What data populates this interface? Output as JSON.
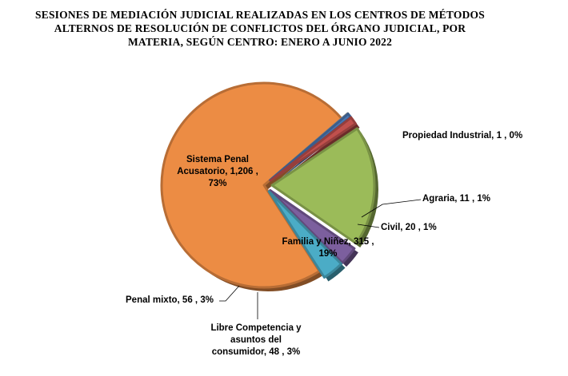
{
  "title_lines": [
    "SESIONES  DE  MEDIACIÓN  JUDICIAL  REALIZADAS  EN  LOS  CENTROS  DE  MÉTODOS",
    "ALTERNOS  DE  RESOLUCIÓN  DE  CONFLICTOS  DEL  ÓRGANO  JUDICIAL,  POR",
    "MATERIA,  SEGÚN  CENTRO:   ENERO  A  JUNIO  2022"
  ],
  "colors": {
    "Sistema Penal Acusatorio": "#ec8c44",
    "Propiedad Industrial": "#a6a6a6",
    "Agraria": "#4a77b4",
    "Civil": "#c0504d",
    "Familia y Niñez": "#9bbb59",
    "Libre Competencia y asuntos del consumidor": "#7c5f9e",
    "Penal mixto": "#4bacc6"
  },
  "chart_data": {
    "type": "pie",
    "title": "SESIONES DE MEDIACIÓN JUDICIAL REALIZADAS EN LOS CENTROS DE MÉTODOS ALTERNOS DE RESOLUCIÓN DE CONFLICTOS DEL ÓRGANO JUDICIAL, POR MATERIA, SEGÚN CENTRO: ENERO A JUNIO 2022",
    "slices": [
      {
        "name": "Sistema Penal Acusatorio",
        "value": 1206,
        "percent": "73%"
      },
      {
        "name": "Propiedad Industrial",
        "value": 1,
        "percent": "0%"
      },
      {
        "name": "Agraria",
        "value": 11,
        "percent": "1%"
      },
      {
        "name": "Civil",
        "value": 20,
        "percent": "1%"
      },
      {
        "name": "Familia y Niñez",
        "value": 315,
        "percent": "19%"
      },
      {
        "name": "Libre Competencia y asuntos del consumidor",
        "value": 48,
        "percent": "3%"
      },
      {
        "name": "Penal mixto",
        "value": 56,
        "percent": "3%"
      }
    ],
    "legend": "none"
  },
  "labels": {
    "spa": [
      "Sistema Penal",
      "Acusatorio,  1,206 ,",
      "73%"
    ],
    "propiedad": "Propiedad Industrial,  1 , 0%",
    "agraria": "Agraria,  11 , 1%",
    "civil": "Civil,  20 , 1%",
    "familia": [
      "Familia y Niñez, 315 ,",
      "19%"
    ],
    "libre": [
      "Libre Competencia y",
      "asuntos del",
      "consumidor,  48 , 3%"
    ],
    "penal_mixto": "Penal mixto,  56 , 3%"
  }
}
